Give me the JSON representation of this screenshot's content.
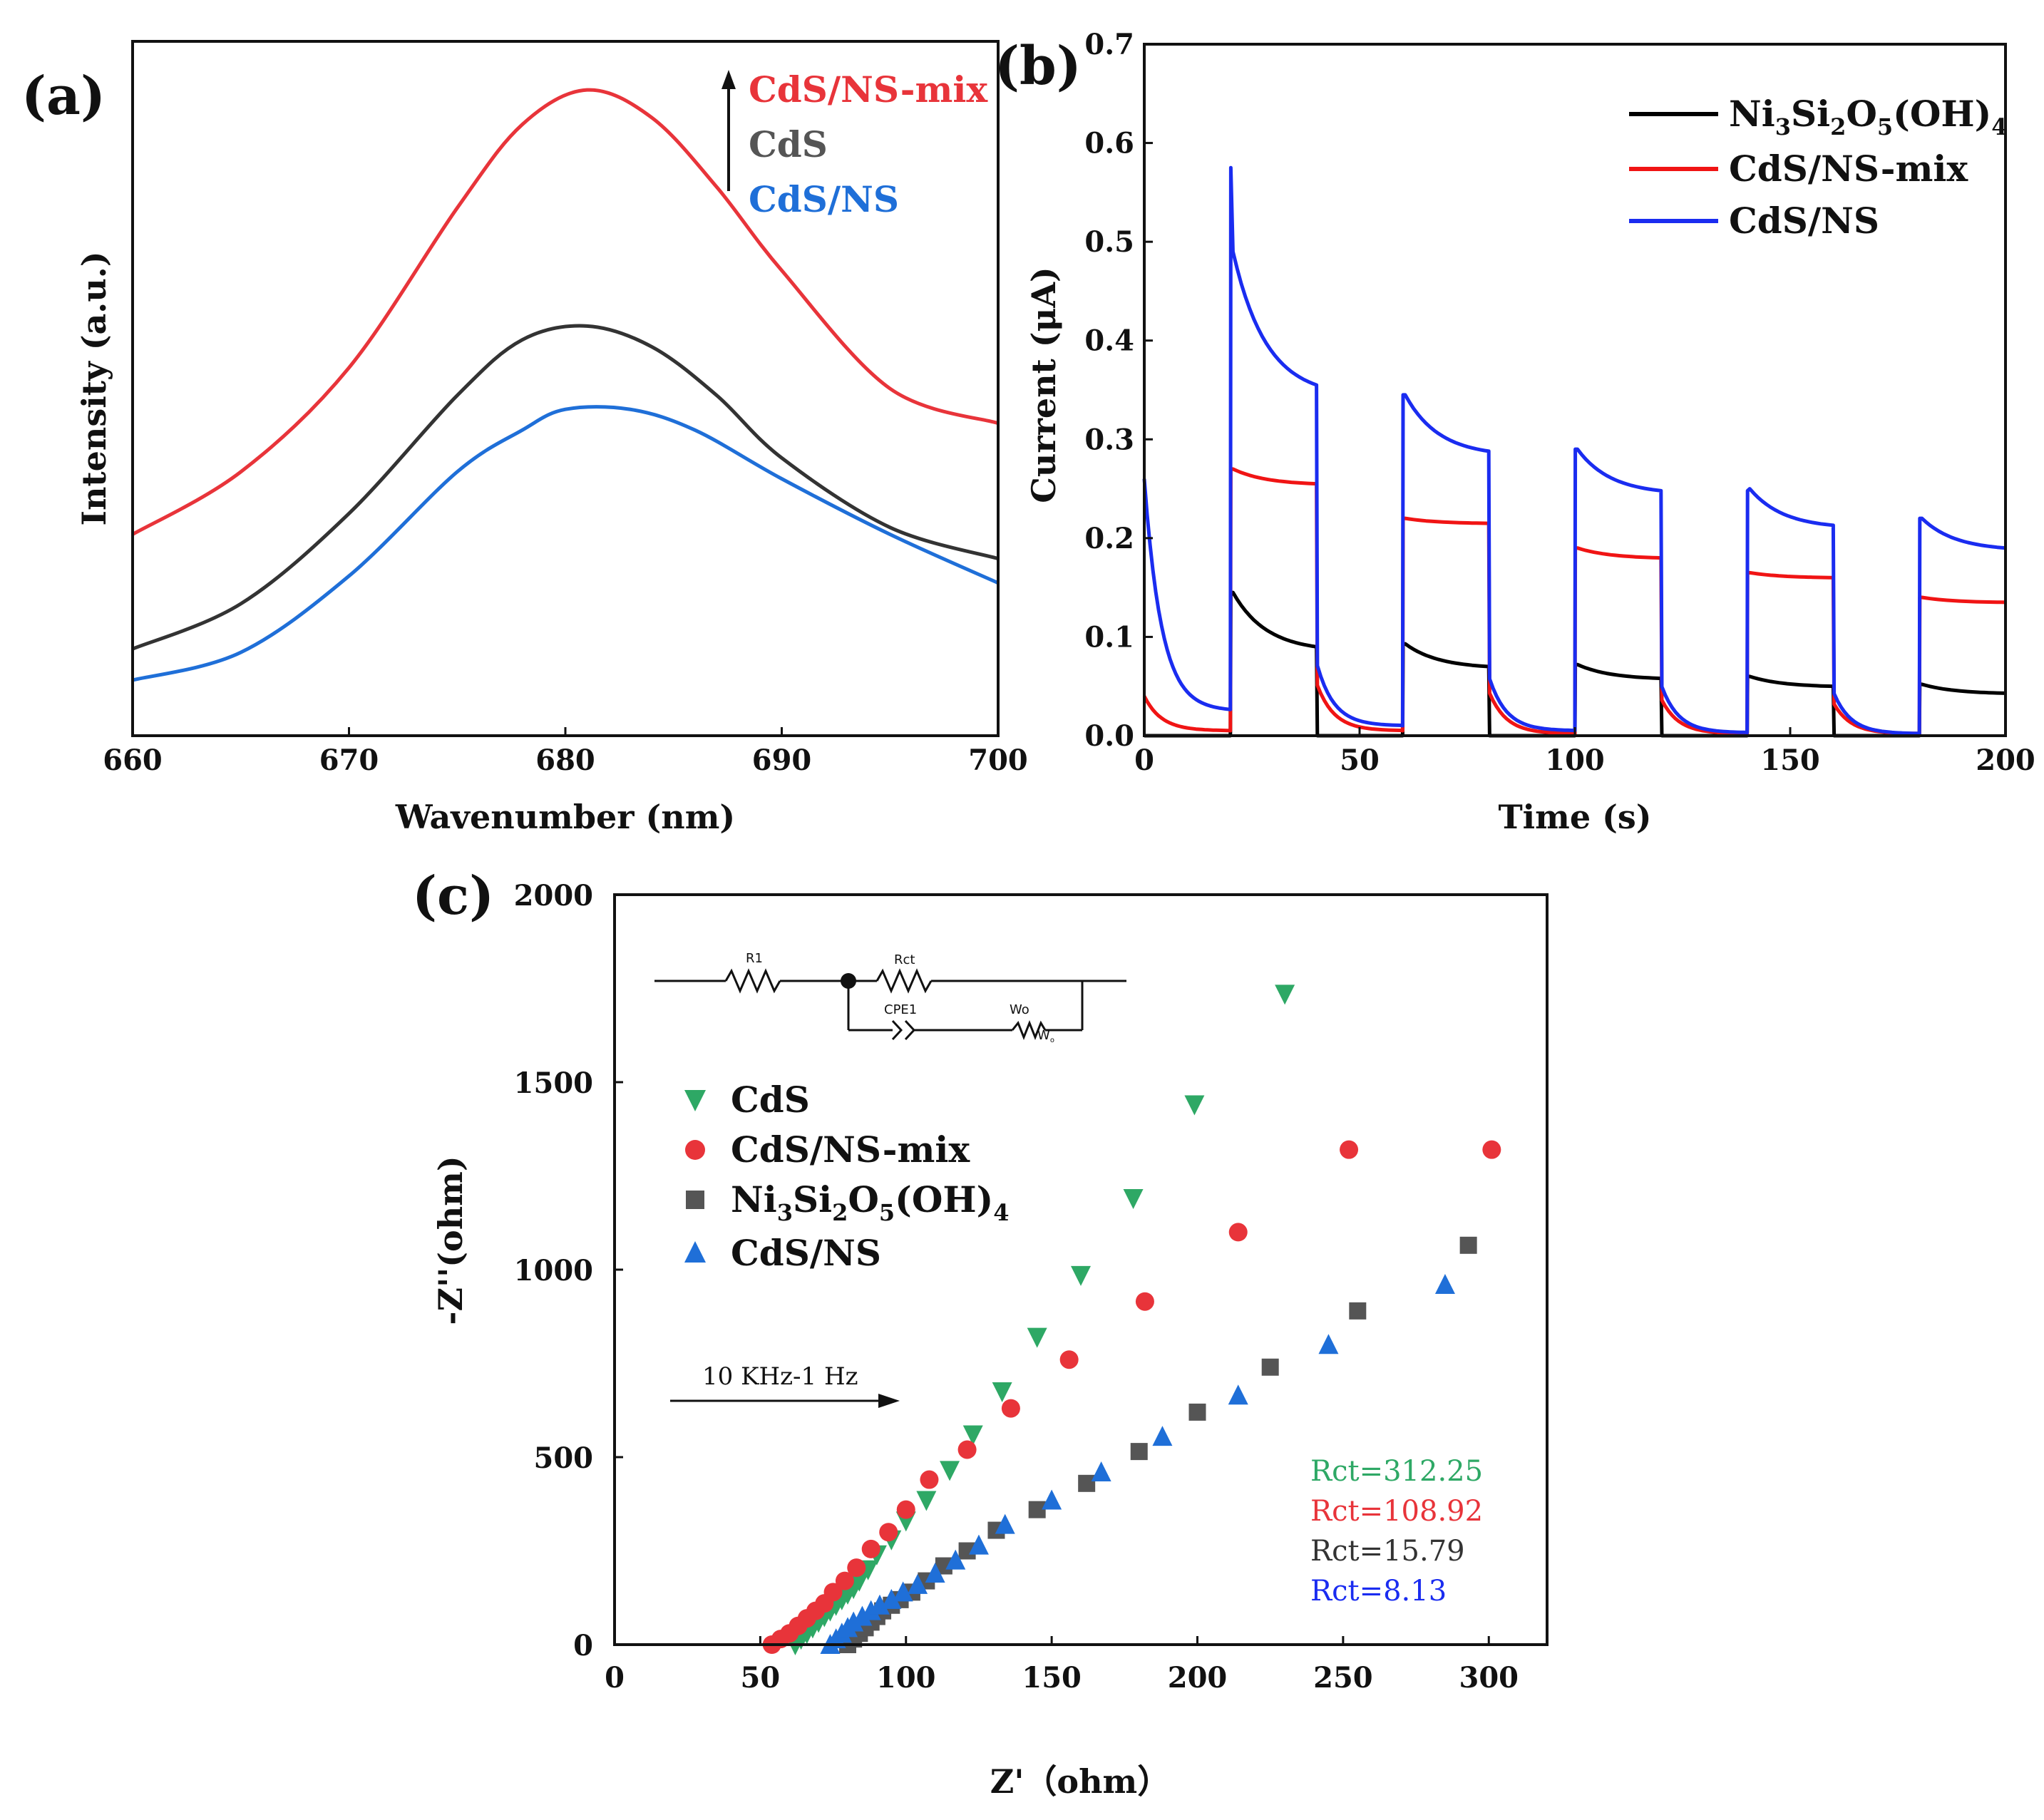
{
  "colors": {
    "red": "#e8343a",
    "black": "#333333",
    "blue": "#1f6fd8",
    "green": "#2ea865",
    "gray": "#555555",
    "pure_blue": "#1a2cf0",
    "pure_red": "#f01414",
    "pure_black": "#000000"
  },
  "chart_data": [
    {
      "panel": "(a)",
      "type": "line",
      "xlabel": "Wavenumber (nm)",
      "ylabel": "Intensity (a.u.)",
      "xlim": [
        660,
        700
      ],
      "ylim": [
        0,
        1
      ],
      "xticks": [
        "660",
        "670",
        "680",
        "690",
        "700"
      ],
      "annotation_arrow": "upward arrow indicating increasing intensity order",
      "legend": [
        "CdS/NS-mix",
        "CdS",
        "CdS/NS"
      ],
      "series": [
        {
          "name": "CdS/NS-mix",
          "color": "#e8343a",
          "x": [
            660,
            665,
            670,
            675,
            678,
            681,
            684,
            687,
            690,
            695,
            700
          ],
          "y": [
            0.29,
            0.38,
            0.53,
            0.76,
            0.88,
            0.93,
            0.89,
            0.79,
            0.67,
            0.5,
            0.45
          ]
        },
        {
          "name": "CdS",
          "color": "#333333",
          "x": [
            660,
            665,
            670,
            675,
            678,
            681,
            684,
            687,
            690,
            695,
            700
          ],
          "y": [
            0.125,
            0.19,
            0.32,
            0.49,
            0.57,
            0.59,
            0.56,
            0.49,
            0.4,
            0.3,
            0.255
          ]
        },
        {
          "name": "CdS/NS",
          "color": "#1f6fd8",
          "x": [
            660,
            665,
            670,
            675,
            678,
            680,
            683,
            686,
            690,
            695,
            700
          ],
          "y": [
            0.08,
            0.12,
            0.23,
            0.38,
            0.44,
            0.47,
            0.47,
            0.44,
            0.37,
            0.29,
            0.22
          ]
        }
      ]
    },
    {
      "panel": "(b)",
      "type": "line",
      "xlabel": "Time (s)",
      "ylabel": "Current (μA)",
      "xlim": [
        0,
        200
      ],
      "ylim": [
        0,
        0.7
      ],
      "xticks": [
        "0",
        "50",
        "100",
        "150",
        "200"
      ],
      "yticks": [
        "0.0",
        "0.1",
        "0.2",
        "0.3",
        "0.4",
        "0.5",
        "0.6",
        "0.7"
      ],
      "light_on_off_period_s": 20,
      "series": [
        {
          "name": "Ni3Si2O5(OH)4",
          "color": "#000000",
          "on_intervals": [
            [
              20,
              40
            ],
            [
              60,
              80
            ],
            [
              100,
              120
            ],
            [
              140,
              160
            ],
            [
              180,
              200
            ]
          ],
          "on_start": [
            0.145,
            0.093,
            0.072,
            0.06,
            0.052
          ],
          "on_end": [
            0.09,
            0.07,
            0.058,
            0.05,
            0.043
          ],
          "off": [
            0.0,
            0.0,
            0.0,
            0.0,
            0.0
          ]
        },
        {
          "name": "CdS/NS-mix",
          "color": "#f01414",
          "on_intervals": [
            [
              20,
              40
            ],
            [
              60,
              80
            ],
            [
              100,
              120
            ],
            [
              140,
              160
            ],
            [
              180,
              200
            ]
          ],
          "on_start": [
            0.27,
            0.22,
            0.19,
            0.165,
            0.14
          ],
          "on_end": [
            0.255,
            0.215,
            0.18,
            0.16,
            0.135
          ],
          "off": [
            0.005,
            0.005,
            0.002,
            0.002,
            0.002
          ]
        },
        {
          "name": "CdS/NS",
          "color": "#1a2cf0",
          "on_intervals": [
            [
              20,
              40
            ],
            [
              60,
              80
            ],
            [
              100,
              120
            ],
            [
              140,
              160
            ],
            [
              180,
              200
            ]
          ],
          "on_start": [
            0.49,
            0.345,
            0.29,
            0.25,
            0.22
          ],
          "on_end": [
            0.355,
            0.288,
            0.248,
            0.213,
            0.19
          ],
          "off": [
            0.015,
            0.01,
            0.005,
            0.003,
            0.002
          ]
        }
      ],
      "legend": [
        "Ni3Si2O5(OH)4",
        "CdS/NS-mix",
        "CdS/NS"
      ]
    },
    {
      "panel": "(c)",
      "type": "scatter",
      "xlabel": "Z'（ohm）",
      "ylabel": "-Z''(ohm)",
      "xlim": [
        0,
        320
      ],
      "ylim": [
        0,
        2000
      ],
      "xticks": [
        "0",
        "50",
        "100",
        "150",
        "200",
        "250",
        "300"
      ],
      "yticks": [
        "0",
        "500",
        "1000",
        "1500",
        "2000"
      ],
      "frequency_annotation": "10 KHz-1 Hz",
      "circuit": {
        "R1": "R1",
        "Rct": "Rct",
        "CPE1": "CPE1",
        "Wo": "Wo",
        "W_symbol": "W",
        "W_sub": "o"
      },
      "legend": [
        {
          "name": "CdS",
          "marker": "triangle-down",
          "color": "#2ea865"
        },
        {
          "name": "CdS/NS-mix",
          "marker": "circle",
          "color": "#e8343a"
        },
        {
          "name": "Ni3Si2O5(OH)4",
          "marker": "square",
          "color": "#555555"
        },
        {
          "name": "CdS/NS",
          "marker": "triangle-up",
          "color": "#1f6fd8"
        }
      ],
      "rct_labels": [
        {
          "text": "Rct=312.25",
          "color": "#2ea865"
        },
        {
          "text": "Rct=108.92",
          "color": "#e8343a"
        },
        {
          "text": "Rct=15.79",
          "color": "#333333"
        },
        {
          "text": "Rct=8.13",
          "color": "#1a2cf0"
        }
      ],
      "series": [
        {
          "name": "CdS",
          "marker": "triangle-down",
          "color": "#2ea865",
          "x": [
            62,
            64,
            66,
            68,
            70,
            72,
            74,
            76,
            78,
            80,
            82,
            84,
            87,
            90,
            95,
            100,
            107,
            115,
            123,
            133,
            145,
            160,
            178,
            199,
            230
          ],
          "y": [
            0,
            15,
            30,
            45,
            60,
            75,
            90,
            105,
            120,
            135,
            150,
            170,
            200,
            240,
            280,
            330,
            385,
            465,
            560,
            675,
            820,
            985,
            1190,
            1440,
            1735
          ]
        },
        {
          "name": "CdS/NS-mix",
          "marker": "circle",
          "color": "#e8343a",
          "x": [
            54,
            57,
            60,
            63,
            66,
            69,
            72,
            75,
            79,
            83,
            88,
            94,
            100,
            108,
            121,
            136,
            156,
            182,
            214,
            252,
            301
          ],
          "y": [
            0,
            15,
            30,
            50,
            70,
            90,
            110,
            140,
            170,
            205,
            255,
            300,
            360,
            440,
            520,
            630,
            760,
            915,
            1100,
            1320,
            1320
          ]
        },
        {
          "name": "Ni3Si2O5(OH)4",
          "marker": "square",
          "color": "#555555",
          "x": [
            80,
            82,
            84,
            86,
            88,
            90,
            92,
            95,
            98,
            102,
            107,
            113,
            121,
            131,
            145,
            162,
            180,
            200,
            225,
            255,
            293
          ],
          "y": [
            0,
            15,
            30,
            45,
            60,
            75,
            90,
            105,
            120,
            140,
            170,
            210,
            250,
            305,
            360,
            430,
            515,
            620,
            740,
            890,
            1065
          ]
        },
        {
          "name": "CdS/NS",
          "marker": "triangle-up",
          "color": "#1f6fd8",
          "x": [
            74,
            76,
            78,
            80,
            82,
            85,
            88,
            91,
            95,
            99,
            104,
            110,
            117,
            125,
            134,
            150,
            167,
            188,
            214,
            245,
            285
          ],
          "y": [
            0,
            15,
            30,
            45,
            60,
            75,
            90,
            105,
            120,
            140,
            160,
            190,
            225,
            265,
            320,
            385,
            460,
            555,
            665,
            800,
            960
          ]
        }
      ]
    }
  ],
  "labels": {
    "panel_a": "(a)",
    "panel_b": "(b)",
    "panel_c": "(c)",
    "a_xlabel": "Wavenumber (nm)",
    "a_ylabel": "Intensity (a.u.)",
    "a_leg1": "CdS/NS-mix",
    "a_leg2": "CdS",
    "a_leg3": "CdS/NS",
    "b_xlabel": "Time (s)",
    "b_ylabel": "Current (μA)",
    "b_leg1_main": "Ni",
    "b_leg1_s1": "3",
    "b_leg1_si": "Si",
    "b_leg1_s2": "2",
    "b_leg1_o": "O",
    "b_leg1_s3": "5",
    "b_leg1_oh": "(OH)",
    "b_leg1_s4": "4",
    "b_leg2": "CdS/NS-mix",
    "b_leg3": "CdS/NS",
    "c_xlabel": "Z'（ohm）",
    "c_ylabel": "-Z''(ohm)",
    "c_leg1": "CdS",
    "c_leg2": "CdS/NS-mix",
    "c_leg4": "CdS/NS",
    "c_freq": "10 KHz-1 Hz"
  }
}
